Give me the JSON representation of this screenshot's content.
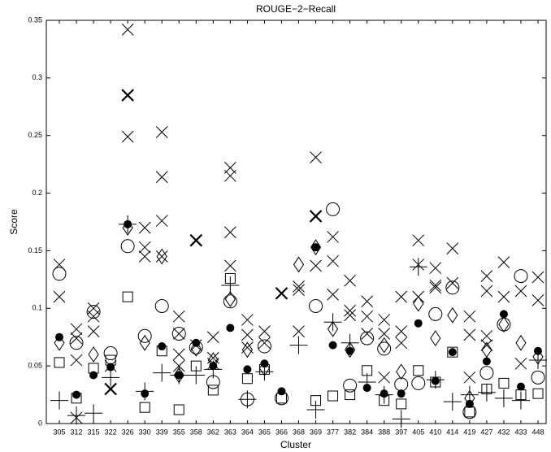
{
  "chart_data": {
    "type": "scatter",
    "title": "ROUGE−2−Recall",
    "xlabel": "Cluster",
    "ylabel": "Score",
    "categories": [
      "305",
      "312",
      "315",
      "322",
      "326",
      "330",
      "339",
      "355",
      "358",
      "362",
      "363",
      "364",
      "365",
      "366",
      "368",
      "369",
      "377",
      "382",
      "384",
      "388",
      "397",
      "405",
      "410",
      "414",
      "419",
      "427",
      "432",
      "433",
      "448"
    ],
    "ylim": [
      0,
      0.35
    ],
    "yticks": [
      0,
      0.05,
      0.1,
      0.15,
      0.2,
      0.25,
      0.3,
      0.35
    ],
    "series": [
      {
        "marker": "x",
        "color": "#000000",
        "values": [
          0.138,
          0.082,
          0.1,
          0.05,
          0.342,
          0.17,
          0.253,
          0.093,
          0.068,
          0.075,
          0.222,
          0.09,
          0.08,
          null,
          0.119,
          0.231,
          0.162,
          0.124,
          0.106,
          0.09,
          0.11,
          0.159,
          0.135,
          0.152,
          0.093,
          0.128,
          0.14,
          0.115,
          0.127
        ]
      },
      {
        "marker": "x",
        "color": "#000000",
        "values": [
          0.11,
          0.074,
          0.093,
          null,
          0.249,
          0.153,
          0.214,
          0.078,
          null,
          0.057,
          0.215,
          0.077,
          0.07,
          null,
          0.116,
          0.137,
          0.141,
          0.098,
          0.093,
          0.078,
          0.08,
          0.138,
          0.12,
          0.122,
          0.077,
          0.115,
          0.11,
          0.052,
          0.107
        ]
      },
      {
        "marker": "x",
        "color": "#000000",
        "values": [
          null,
          0.055,
          0.08,
          null,
          null,
          0.145,
          0.176,
          0.06,
          null,
          0.052,
          0.166,
          0.066,
          null,
          null,
          0.08,
          null,
          0.112,
          0.094,
          0.078,
          0.04,
          0.07,
          0.11,
          0.118,
          null,
          0.04,
          0.076,
          null,
          null,
          null
        ]
      },
      {
        "marker": "x",
        "color": "#000000",
        "values": [
          null,
          0.005,
          null,
          null,
          null,
          null,
          0.145,
          0.05,
          null,
          null,
          0.137,
          null,
          null,
          null,
          null,
          null,
          null,
          null,
          null,
          null,
          null,
          null,
          null,
          null,
          null,
          0.068,
          null,
          null,
          null
        ]
      },
      {
        "marker": "thick-x",
        "color": "#000000",
        "values": [
          null,
          null,
          null,
          0.03,
          0.285,
          null,
          null,
          null,
          0.159,
          null,
          null,
          null,
          null,
          0.113,
          null,
          0.18,
          null,
          null,
          null,
          null,
          null,
          null,
          null,
          null,
          null,
          null,
          null,
          null,
          null
        ]
      },
      {
        "marker": "plus",
        "color": "#000000",
        "values": [
          0.02,
          0.007,
          0.009,
          0.04,
          0.173,
          0.028,
          0.044,
          0.042,
          0.042,
          0.047,
          0.12,
          0.021,
          0.045,
          null,
          0.068,
          0.012,
          0.088,
          0.07,
          0.036,
          0.025,
          0.004,
          0.136,
          0.038,
          0.019,
          0.025,
          0.027,
          0.022,
          0.02,
          0.055
        ]
      },
      {
        "marker": "circle",
        "color": "#000000",
        "values": [
          0.13,
          0.07,
          0.097,
          0.061,
          0.154,
          0.076,
          0.102,
          0.078,
          0.066,
          0.036,
          0.106,
          0.021,
          0.067,
          0.022,
          null,
          0.102,
          0.186,
          0.033,
          0.074,
          0.065,
          0.034,
          0.035,
          0.095,
          0.118,
          0.01,
          0.044,
          0.086,
          0.128,
          0.04
        ]
      },
      {
        "marker": "dot",
        "color": "#000000",
        "values": [
          0.075,
          0.025,
          0.042,
          0.049,
          0.173,
          0.026,
          0.067,
          0.042,
          0.07,
          0.05,
          0.083,
          0.047,
          0.052,
          0.028,
          null,
          0.153,
          0.068,
          0.063,
          0.031,
          0.026,
          0.026,
          0.087,
          0.037,
          0.062,
          0.017,
          0.054,
          0.095,
          0.032,
          0.063
        ]
      },
      {
        "marker": "square",
        "color": "#000000",
        "values": [
          0.053,
          0.022,
          0.048,
          0.055,
          0.11,
          0.014,
          0.063,
          0.012,
          0.05,
          0.029,
          0.126,
          0.039,
          0.047,
          0.022,
          null,
          0.02,
          0.024,
          0.025,
          0.046,
          0.02,
          0.017,
          0.046,
          0.036,
          0.062,
          0.01,
          0.03,
          0.035,
          0.025,
          0.026
        ]
      },
      {
        "marker": "diamond",
        "color": "#000000",
        "values": [
          0.07,
          null,
          0.06,
          null,
          0.17,
          0.07,
          0.145,
          0.042,
          0.065,
          0.055,
          0.108,
          0.064,
          0.048,
          null,
          0.138,
          0.153,
          0.082,
          0.064,
          null,
          0.068,
          0.045,
          0.104,
          0.074,
          0.094,
          0.022,
          0.064,
          0.086,
          0.07,
          0.058
        ]
      }
    ]
  }
}
